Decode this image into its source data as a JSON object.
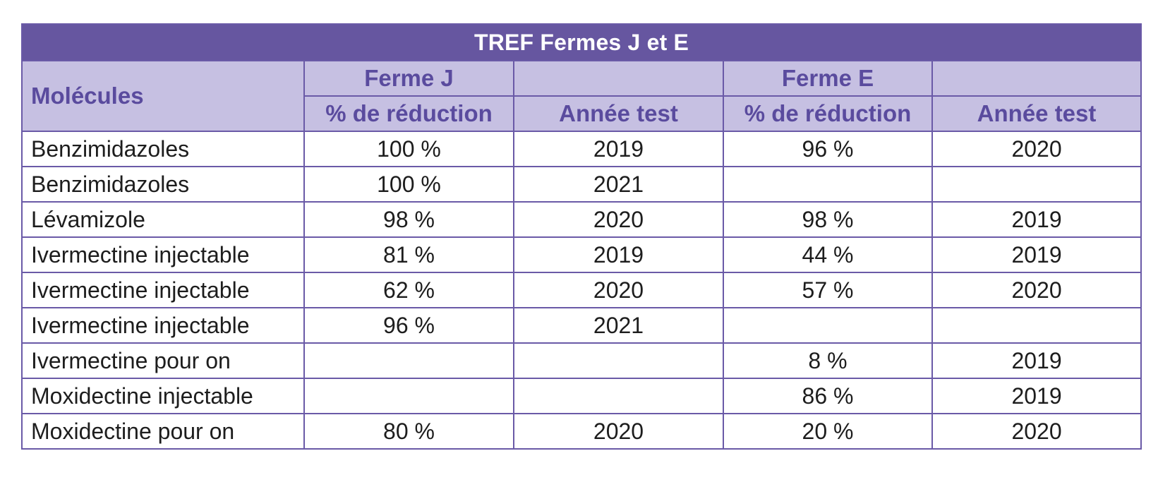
{
  "table": {
    "title": "TREF Fermes J et E",
    "header": {
      "molecules": "Molécules",
      "ferme_j": "Ferme J",
      "ferme_e": "Ferme E",
      "j_reduction": "% de réduction",
      "j_annee": "Année test",
      "e_reduction": "% de réduction",
      "e_annee": "Année test"
    },
    "rows": [
      {
        "molecule": "Benzimidazoles",
        "j_reduction": "100 %",
        "j_annee": "2019",
        "e_reduction": "96 %",
        "e_annee": "2020"
      },
      {
        "molecule": "Benzimidazoles",
        "j_reduction": "100 %",
        "j_annee": "2021",
        "e_reduction": "",
        "e_annee": ""
      },
      {
        "molecule": "Lévamizole",
        "j_reduction": "98 %",
        "j_annee": "2020",
        "e_reduction": "98 %",
        "e_annee": "2019"
      },
      {
        "molecule": "Ivermectine injectable",
        "j_reduction": "81 %",
        "j_annee": "2019",
        "e_reduction": "44 %",
        "e_annee": "2019"
      },
      {
        "molecule": "Ivermectine injectable",
        "j_reduction": "62 %",
        "j_annee": "2020",
        "e_reduction": "57 %",
        "e_annee": "2020"
      },
      {
        "molecule": "Ivermectine injectable",
        "j_reduction": "96 %",
        "j_annee": "2021",
        "e_reduction": "",
        "e_annee": ""
      },
      {
        "molecule": "Ivermectine pour on",
        "j_reduction": "",
        "j_annee": "",
        "e_reduction": "8 %",
        "e_annee": "2019"
      },
      {
        "molecule": "Moxidectine injectable",
        "j_reduction": "",
        "j_annee": "",
        "e_reduction": "86 %",
        "e_annee": "2019"
      },
      {
        "molecule": "Moxidectine pour on",
        "j_reduction": "80 %",
        "j_annee": "2020",
        "e_reduction": "20 %",
        "e_annee": "2020"
      }
    ],
    "colors": {
      "title_bg": "#6656a0",
      "header_bg": "#c6c0e2",
      "header_text": "#5a4b9e",
      "border": "#6a5aa7"
    }
  }
}
